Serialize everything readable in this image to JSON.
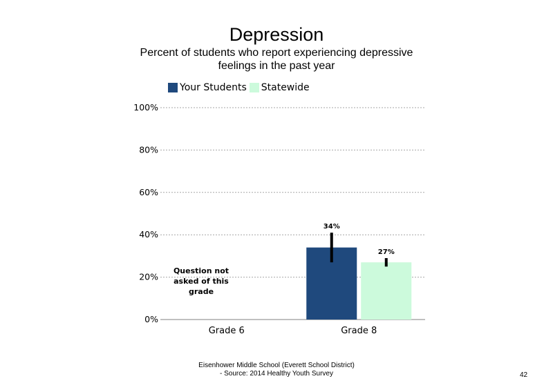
{
  "chart_data": {
    "type": "bar",
    "title": "Depression",
    "subtitle": "Percent of students who report experiencing depressive feelings in the past year",
    "categories": [
      "Grade 6",
      "Grade 8"
    ],
    "series": [
      {
        "name": "Your Students",
        "color": "#1f497d",
        "values": [
          null,
          34
        ],
        "labels": [
          "",
          "34%"
        ],
        "error": [
          null,
          [
            27,
            41
          ]
        ]
      },
      {
        "name": "Statewide",
        "color": "#ccfadc",
        "values": [
          null,
          27
        ],
        "labels": [
          "",
          "27%"
        ],
        "error": [
          null,
          [
            25,
            29
          ]
        ]
      }
    ],
    "yticks": [
      "0%",
      "20%",
      "40%",
      "60%",
      "80%",
      "100%"
    ],
    "ylim": [
      0,
      100
    ],
    "grid": true,
    "legend": "top",
    "annotations": [
      "Question not asked of this grade"
    ]
  },
  "footer": {
    "line1": "Eisenhower Middle School (Everett School District)",
    "line2": "- Source: 2014 Healthy Youth Survey"
  },
  "page_number": "42"
}
